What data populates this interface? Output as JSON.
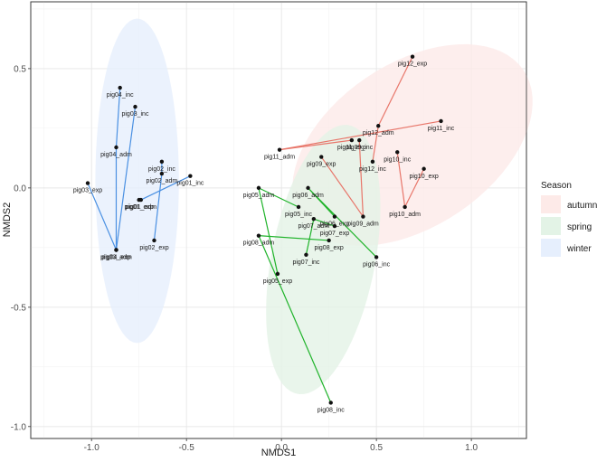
{
  "chart_data": {
    "type": "scatter",
    "title": "",
    "xlabel": "NMDS1",
    "ylabel": "NMDS2",
    "xlim": [
      -1.32,
      1.29
    ],
    "ylim": [
      -1.05,
      0.78
    ],
    "xticks": [
      -1.0,
      -0.5,
      0.0,
      0.5,
      1.0
    ],
    "xtick_labels": [
      "-1.0",
      "-0.5",
      "0.0",
      "0.5",
      "1.0"
    ],
    "yticks": [
      -1.0,
      -0.5,
      0.0,
      0.5
    ],
    "ytick_labels": [
      "-1.0",
      "-0.5",
      "0.0",
      "0.5"
    ],
    "grid": true,
    "legend": {
      "title": "Season",
      "placement": "right",
      "entries": [
        {
          "name": "autumn",
          "fill": "#fdeae8",
          "line": "#e8766a"
        },
        {
          "name": "spring",
          "fill": "#e3f3e6",
          "line": "#1fb32a"
        },
        {
          "name": "winter",
          "fill": "#e6effd",
          "line": "#4a90e2"
        }
      ]
    },
    "ellipses": [
      {
        "season": "autumn",
        "cx": 0.69,
        "cy": 0.18,
        "rx": 0.67,
        "ry": 0.36,
        "angle_deg": 23
      },
      {
        "season": "spring",
        "cx": 0.22,
        "cy": -0.3,
        "rx": 0.58,
        "ry": 0.27,
        "angle_deg": 75
      },
      {
        "season": "winter",
        "cx": -0.76,
        "cy": 0.03,
        "rx": 0.68,
        "ry": 0.22,
        "angle_deg": 90
      }
    ],
    "series": [
      {
        "name": "autumn",
        "color": "#e8766a",
        "points": [
          {
            "label": "pig09_adm",
            "x": 0.43,
            "y": -0.12
          },
          {
            "label": "pig09_exp",
            "x": 0.21,
            "y": 0.13
          },
          {
            "label": "pig09_inc",
            "x": 0.41,
            "y": 0.2
          },
          {
            "label": "pig10_adm",
            "x": 0.65,
            "y": -0.08
          },
          {
            "label": "pig10_exp",
            "x": 0.75,
            "y": 0.08
          },
          {
            "label": "pig10_inc",
            "x": 0.61,
            "y": 0.15
          },
          {
            "label": "pig11_adm",
            "x": -0.01,
            "y": 0.16
          },
          {
            "label": "pig11_exp",
            "x": 0.37,
            "y": 0.2
          },
          {
            "label": "pig11_inc",
            "x": 0.84,
            "y": 0.28
          },
          {
            "label": "pig12_adm",
            "x": 0.51,
            "y": 0.26
          },
          {
            "label": "pig12_exp",
            "x": 0.69,
            "y": 0.55
          },
          {
            "label": "pig12_inc",
            "x": 0.48,
            "y": 0.11
          }
        ],
        "segments": [
          [
            "pig09_adm",
            "pig09_exp"
          ],
          [
            "pig09_adm",
            "pig09_inc"
          ],
          [
            "pig10_adm",
            "pig10_exp"
          ],
          [
            "pig10_adm",
            "pig10_inc"
          ],
          [
            "pig11_adm",
            "pig11_exp"
          ],
          [
            "pig11_adm",
            "pig11_inc"
          ],
          [
            "pig12_adm",
            "pig12_exp"
          ],
          [
            "pig12_adm",
            "pig12_inc"
          ]
        ]
      },
      {
        "name": "spring",
        "color": "#1fb32a",
        "points": [
          {
            "label": "pig05_adm",
            "x": -0.12,
            "y": 0.0
          },
          {
            "label": "pig05_exp",
            "x": -0.02,
            "y": -0.36
          },
          {
            "label": "pig05_inc",
            "x": 0.09,
            "y": -0.08
          },
          {
            "label": "pig06_adm",
            "x": 0.14,
            "y": 0.0
          },
          {
            "label": "pig06_exp",
            "x": 0.28,
            "y": -0.12
          },
          {
            "label": "pig06_inc",
            "x": 0.5,
            "y": -0.29
          },
          {
            "label": "pig07_adm",
            "x": 0.17,
            "y": -0.13
          },
          {
            "label": "pig07_exp",
            "x": 0.28,
            "y": -0.16
          },
          {
            "label": "pig07_inc",
            "x": 0.13,
            "y": -0.28
          },
          {
            "label": "pig08_adm",
            "x": -0.12,
            "y": -0.2
          },
          {
            "label": "pig08_exp",
            "x": 0.25,
            "y": -0.22
          },
          {
            "label": "pig08_inc",
            "x": 0.26,
            "y": -0.9
          }
        ],
        "segments": [
          [
            "pig05_adm",
            "pig05_exp"
          ],
          [
            "pig05_adm",
            "pig05_inc"
          ],
          [
            "pig06_adm",
            "pig06_exp"
          ],
          [
            "pig06_adm",
            "pig06_inc"
          ],
          [
            "pig07_adm",
            "pig07_exp"
          ],
          [
            "pig07_adm",
            "pig07_inc"
          ],
          [
            "pig08_adm",
            "pig08_exp"
          ],
          [
            "pig08_adm",
            "pig08_inc"
          ]
        ]
      },
      {
        "name": "winter",
        "color": "#4a90e2",
        "points": [
          {
            "label": "pig01_adm",
            "x": -0.74,
            "y": -0.05
          },
          {
            "label": "pig01_exp",
            "x": -0.75,
            "y": -0.05
          },
          {
            "label": "pig01_inc",
            "x": -0.48,
            "y": 0.05
          },
          {
            "label": "pig02_adm",
            "x": -0.63,
            "y": 0.06
          },
          {
            "label": "pig02_exp",
            "x": -0.67,
            "y": -0.22
          },
          {
            "label": "pig02_inc",
            "x": -0.63,
            "y": 0.11
          },
          {
            "label": "pig03_adm",
            "x": -0.87,
            "y": -0.26
          },
          {
            "label": "pig03_exp",
            "x": -1.02,
            "y": 0.02
          },
          {
            "label": "pig03_inc",
            "x": -0.77,
            "y": 0.34
          },
          {
            "label": "pig04_adm",
            "x": -0.87,
            "y": 0.17
          },
          {
            "label": "pig04_exp",
            "x": -0.87,
            "y": -0.26
          },
          {
            "label": "pig04_inc",
            "x": -0.85,
            "y": 0.42
          }
        ],
        "segments": [
          [
            "pig01_adm",
            "pig01_exp"
          ],
          [
            "pig01_adm",
            "pig01_inc"
          ],
          [
            "pig02_adm",
            "pig02_exp"
          ],
          [
            "pig02_adm",
            "pig02_inc"
          ],
          [
            "pig03_adm",
            "pig03_exp"
          ],
          [
            "pig03_adm",
            "pig03_inc"
          ],
          [
            "pig04_adm",
            "pig04_exp"
          ],
          [
            "pig04_adm",
            "pig04_inc"
          ]
        ]
      }
    ]
  }
}
